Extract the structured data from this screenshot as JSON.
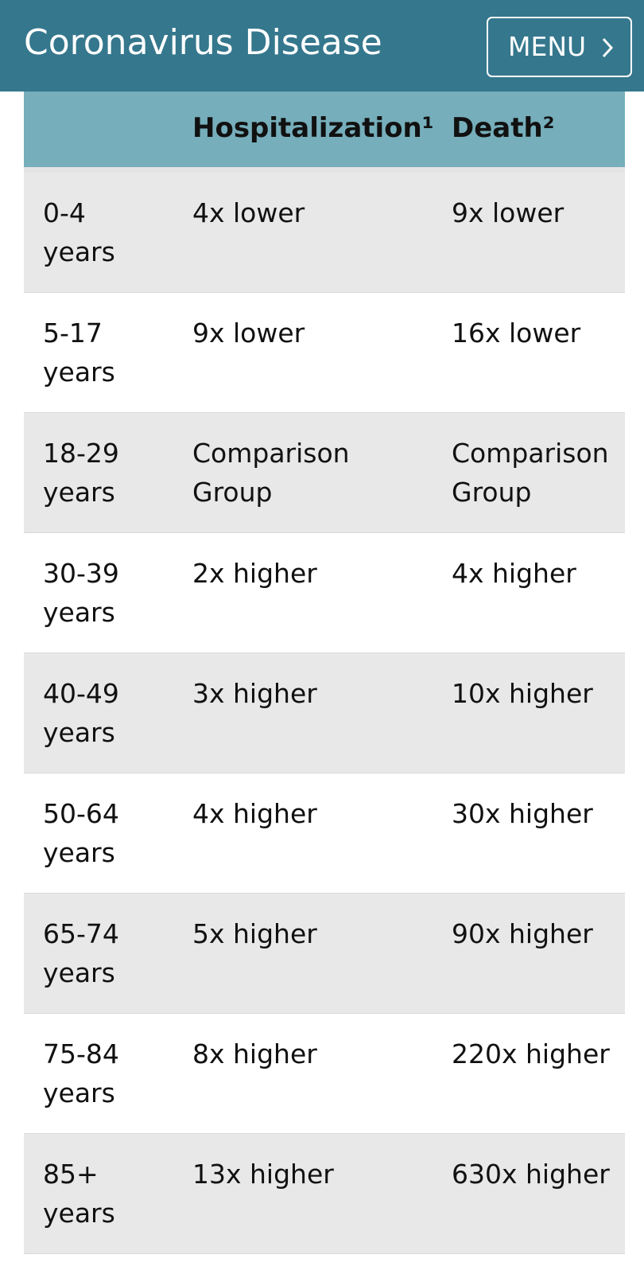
{
  "header": {
    "site_title": "Coronavirus Disease",
    "menu_label": "MENU",
    "menu_icon": "chevron-right-icon",
    "background_color": "#35778d"
  },
  "table": {
    "header_background": "#76aebb",
    "columns": [
      "",
      "Hospitalization¹",
      "Death²"
    ],
    "rows": [
      {
        "age_line1": "0-4",
        "age_line2": "years",
        "hospitalization": "4x lower",
        "death": "9x lower"
      },
      {
        "age_line1": "5-17",
        "age_line2": "years",
        "hospitalization": "9x lower",
        "death": "16x lower"
      },
      {
        "age_line1": "18-29",
        "age_line2": "years",
        "hospitalization": "Comparison Group",
        "death": "Comparison Group"
      },
      {
        "age_line1": "30-39",
        "age_line2": "years",
        "hospitalization": "2x higher",
        "death": "4x higher"
      },
      {
        "age_line1": "40-49",
        "age_line2": "years",
        "hospitalization": "3x higher",
        "death": "10x higher"
      },
      {
        "age_line1": "50-64",
        "age_line2": "years",
        "hospitalization": "4x higher",
        "death": "30x higher"
      },
      {
        "age_line1": "65-74",
        "age_line2": "years",
        "hospitalization": "5x higher",
        "death": "90x higher"
      },
      {
        "age_line1": "75-84",
        "age_line2": "years",
        "hospitalization": "8x higher",
        "death": "220x higher"
      },
      {
        "age_line1": "85+",
        "age_line2": "years",
        "hospitalization": "13x higher",
        "death": "630x higher"
      }
    ]
  }
}
